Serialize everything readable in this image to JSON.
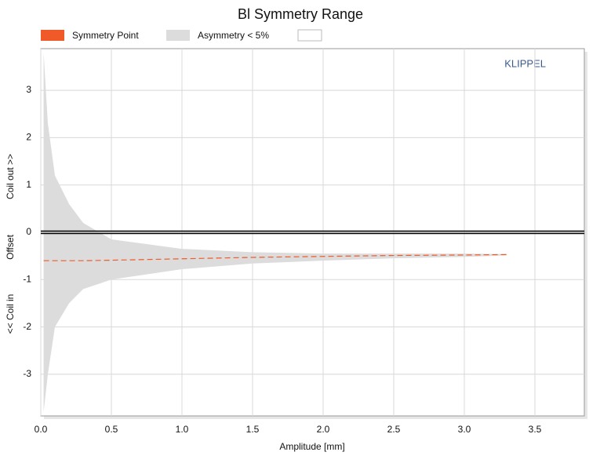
{
  "chart_data": {
    "type": "area-range",
    "title": "Bl Symmetry Range",
    "x_label": "Amplitude [mm]",
    "y_label": [
      "<< Coil in",
      "Offset",
      "Coil out >>"
    ],
    "annotation": "KLIPPEL",
    "x": [
      0.02,
      0.05,
      0.1,
      0.2,
      0.3,
      0.5,
      1.0,
      1.5,
      2.0,
      2.5,
      3.0,
      3.3
    ],
    "series": [
      {
        "name": "Symmetry Point",
        "color": "#f05a28",
        "values": [
          -0.6,
          -0.6,
          -0.6,
          -0.6,
          -0.6,
          -0.59,
          -0.56,
          -0.53,
          -0.51,
          -0.49,
          -0.48,
          -0.47
        ]
      },
      {
        "name": "Asymmetry < 5%",
        "color": "#dcdcdc",
        "upper": [
          3.8,
          2.3,
          1.2,
          0.6,
          0.2,
          -0.15,
          -0.35,
          -0.42,
          -0.45,
          -0.45,
          -0.45,
          -0.46
        ],
        "lower": [
          -3.8,
          -3.0,
          -2.0,
          -1.5,
          -1.2,
          -1.0,
          -0.78,
          -0.66,
          -0.6,
          -0.55,
          -0.52,
          -0.49
        ]
      }
    ],
    "xlim": [
      0,
      3.85
    ],
    "ylim": [
      -3.88,
      3.88
    ],
    "xticks": [
      {
        "value": 0,
        "label": "0.0"
      },
      0.5,
      {
        "value": 1,
        "label": "1.0"
      },
      1.5,
      {
        "value": 2,
        "label": "2.0"
      },
      2.5,
      {
        "value": 3,
        "label": "3.0"
      },
      3.5
    ],
    "yticks": [
      -3,
      -2,
      -1,
      0,
      1,
      2,
      3
    ],
    "grid": true
  }
}
